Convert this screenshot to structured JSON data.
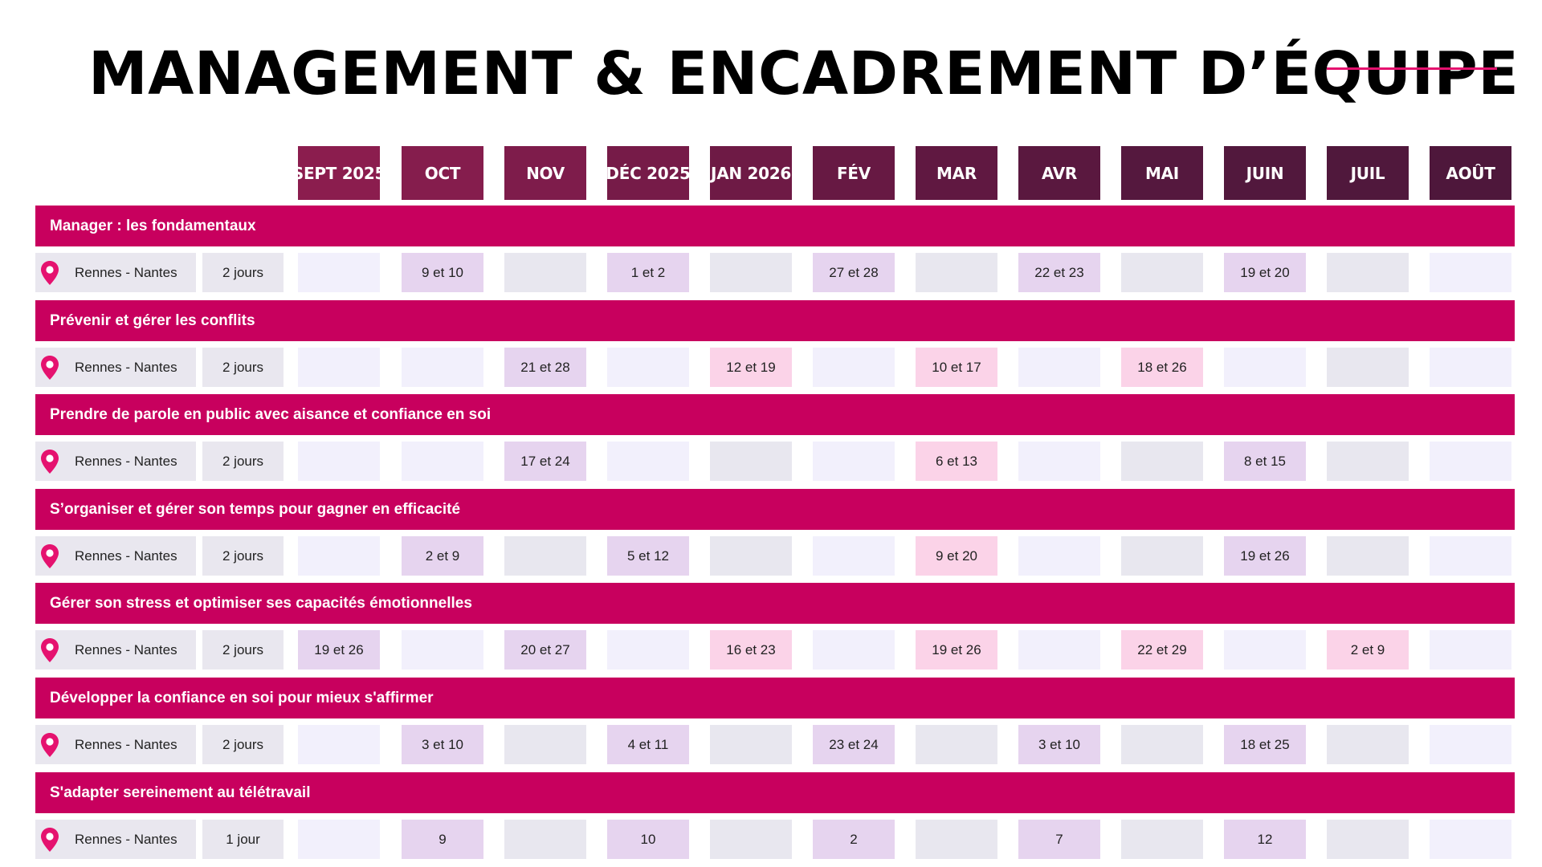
{
  "title": "MANAGEMENT & ENCADREMENT D’ÉQUIPE",
  "colors": {
    "accent": "#c8005e",
    "title_line": "#e5126f",
    "pin": "#e5126f",
    "cell_purple": "#e6d4ef",
    "cell_pink": "#fbd3e8"
  },
  "icons": {
    "location": "map-pin-icon"
  },
  "months": [
    {
      "label": "SEPT 2025",
      "color": "#8b1d4e"
    },
    {
      "label": "OCT",
      "color": "#851d4d"
    },
    {
      "label": "NOV",
      "color": "#7e1c4b"
    },
    {
      "label": "DÉC 2025",
      "color": "#761b48"
    },
    {
      "label": "JAN 2026",
      "color": "#6e1a45"
    },
    {
      "label": "FÉV",
      "color": "#671943"
    },
    {
      "label": "MAR",
      "color": "#601841"
    },
    {
      "label": "AVR",
      "color": "#5a183f"
    },
    {
      "label": "MAI",
      "color": "#55183e"
    },
    {
      "label": "JUIN",
      "color": "#52183d"
    },
    {
      "label": "JUIL",
      "color": "#50183c"
    },
    {
      "label": "AOÛT",
      "color": "#4e173b"
    }
  ],
  "courses": [
    {
      "title": "Manager : les fondamentaux",
      "location": "Rennes - Nantes",
      "duration": "2 jours",
      "dates": [
        "",
        "9 et 10",
        "",
        "1 et 2",
        "",
        "27 et 28",
        "",
        "22 et 23",
        "",
        "19 et 20",
        "",
        ""
      ]
    },
    {
      "title": "Prévenir et gérer les conflits",
      "location": "Rennes - Nantes",
      "duration": "2 jours",
      "dates": [
        "",
        "",
        "21 et 28",
        "",
        "12 et 19",
        "",
        "10 et 17",
        "",
        "18 et 26",
        "",
        "",
        ""
      ]
    },
    {
      "title": "Prendre de parole en public avec aisance et confiance en soi",
      "location": "Rennes - Nantes",
      "duration": "2 jours",
      "dates": [
        "",
        "",
        "17 et 24",
        "",
        "",
        "",
        "6 et 13",
        "",
        "",
        "8 et 15",
        "",
        ""
      ]
    },
    {
      "title": "S’organiser et gérer son temps pour gagner en efficacité",
      "location": "Rennes - Nantes",
      "duration": "2 jours",
      "dates": [
        "",
        "2 et 9",
        "",
        "5 et 12",
        "",
        "",
        "9 et 20",
        "",
        "",
        "19 et 26",
        "",
        ""
      ]
    },
    {
      "title": "Gérer son stress et optimiser ses capacités émotionnelles",
      "location": "Rennes - Nantes",
      "duration": "2 jours",
      "dates": [
        "19 et 26",
        "",
        "20 et 27",
        "",
        "16 et 23",
        "",
        "19 et 26",
        "",
        "22 et 29",
        "",
        "2 et 9",
        ""
      ]
    },
    {
      "title": "Développer la confiance en soi pour mieux s'affirmer",
      "location": "Rennes - Nantes",
      "duration": "2 jours",
      "dates": [
        "",
        "3 et 10",
        "",
        "4 et 11",
        "",
        "23 et 24",
        "",
        "3 et 10",
        "",
        "18 et 25",
        "",
        ""
      ]
    },
    {
      "title": "S'adapter sereinement au télétravail",
      "location": "Rennes - Nantes",
      "duration": "1 jour",
      "dates": [
        "",
        "9",
        "",
        "10",
        "",
        "2",
        "",
        "7",
        "",
        "12",
        "",
        ""
      ]
    }
  ]
}
